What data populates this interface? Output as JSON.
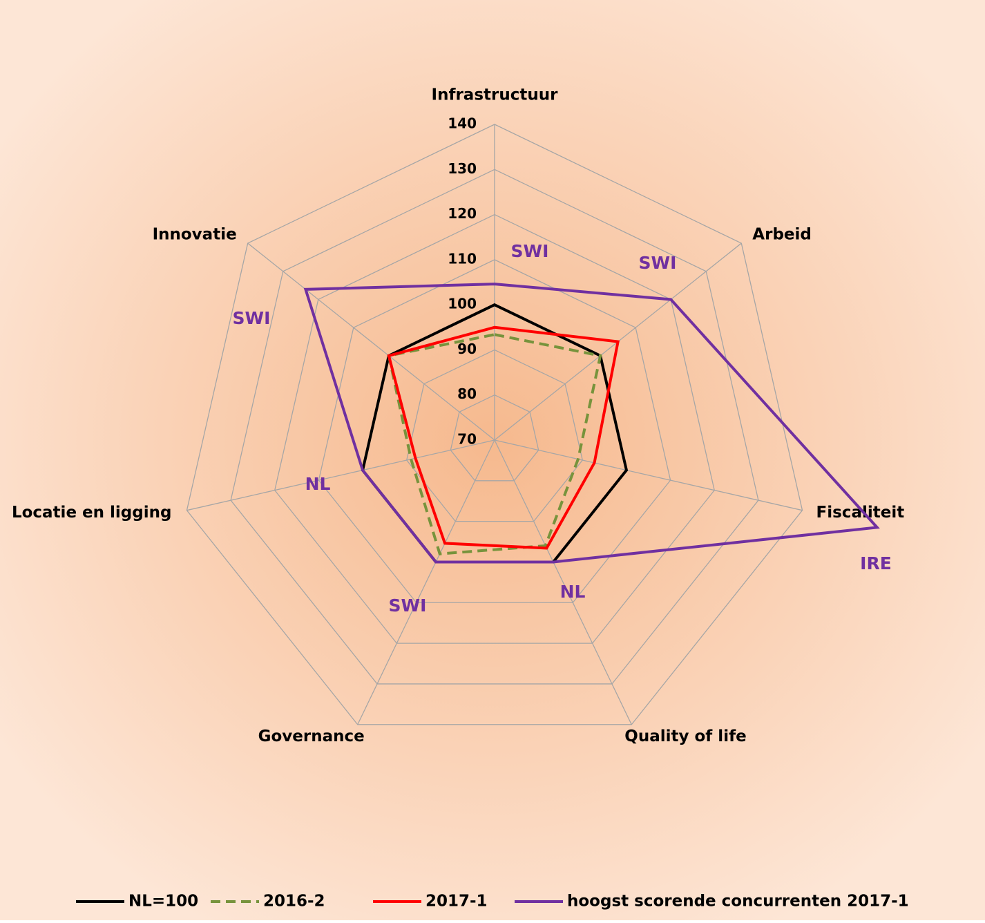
{
  "chart_data": {
    "type": "radar",
    "categories": [
      "Infrastructuur",
      "Arbeid",
      "Fiscaliteit",
      "Quality of life",
      "Governance",
      "Locatie en ligging",
      "Innovatie"
    ],
    "ylim": [
      70,
      140
    ],
    "yticks": [
      70,
      80,
      90,
      100,
      110,
      120,
      130,
      140
    ],
    "grid": true,
    "series": [
      {
        "name": "NL=100",
        "color": "#000000",
        "dash": false,
        "values": [
          100,
          100,
          100,
          100,
          100,
          100,
          100
        ]
      },
      {
        "name": "2016-2",
        "color": "#77933c",
        "dash": true,
        "values": [
          93.4,
          100,
          89,
          96,
          98,
          89,
          100
        ]
      },
      {
        "name": "2017-1",
        "color": "#ff0000",
        "dash": false,
        "values": [
          95,
          105,
          92.7,
          96.6,
          95.4,
          88,
          100
        ]
      },
      {
        "name": "hoogst scorende concurrenten 2017-1",
        "color": "#7030a0",
        "dash": false,
        "values": [
          104.6,
          120,
          157,
          100,
          100,
          100,
          123.6
        ]
      }
    ],
    "annotations": [
      "SWI",
      "SWI",
      "IRE",
      "NL",
      "SWI",
      "NL",
      "SWI"
    ],
    "legend": "bottom"
  }
}
